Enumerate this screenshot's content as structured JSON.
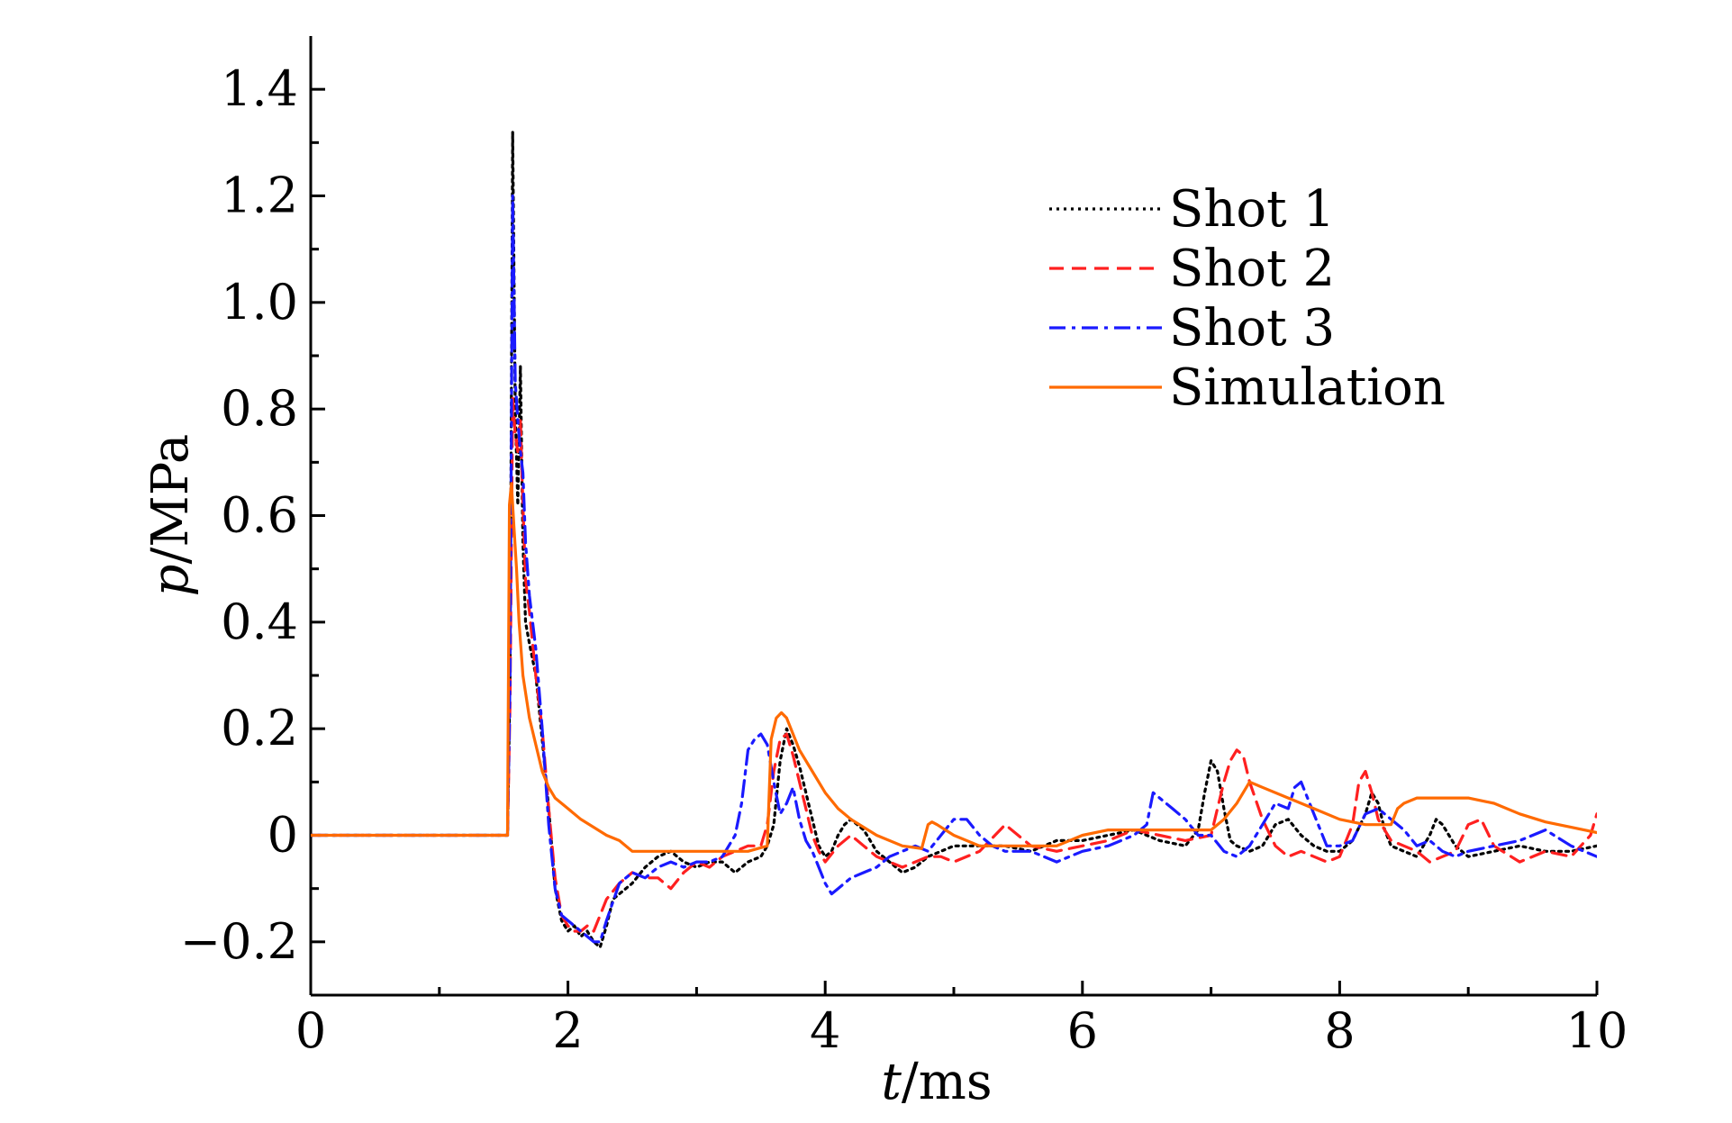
{
  "chart_data": {
    "type": "line",
    "xlabel_var": "t",
    "xlabel_unit": "/ms",
    "ylabel_var": "p",
    "ylabel_unit": "/MPa",
    "xlim": [
      0,
      10
    ],
    "ylim": [
      -0.3,
      1.5
    ],
    "xticks": [
      0,
      2,
      4,
      6,
      8,
      10
    ],
    "xtick_labels": [
      "0",
      "2",
      "4",
      "6",
      "8",
      "10"
    ],
    "yticks": [
      -0.2,
      0,
      0.2,
      0.4,
      0.6,
      0.8,
      1.0,
      1.2,
      1.4
    ],
    "ytick_labels": [
      "−0.2",
      "0",
      "0.2",
      "0.4",
      "0.6",
      "0.8",
      "1.0",
      "1.2",
      "1.4"
    ],
    "legend_position": "top-right",
    "grid": false,
    "series": [
      {
        "name": "Shot 1",
        "color": "#000000",
        "dash": "dotted",
        "x": [
          0,
          1.53,
          1.55,
          1.57,
          1.59,
          1.61,
          1.63,
          1.65,
          1.67,
          1.7,
          1.75,
          1.8,
          1.85,
          1.9,
          1.95,
          2.0,
          2.05,
          2.1,
          2.15,
          2.2,
          2.25,
          2.3,
          2.35,
          2.4,
          2.5,
          2.6,
          2.7,
          2.8,
          2.9,
          3.0,
          3.1,
          3.2,
          3.3,
          3.4,
          3.5,
          3.55,
          3.6,
          3.65,
          3.7,
          3.75,
          3.8,
          3.85,
          3.9,
          3.95,
          4.0,
          4.05,
          4.1,
          4.15,
          4.2,
          4.25,
          4.3,
          4.35,
          4.4,
          4.5,
          4.6,
          4.7,
          4.8,
          4.9,
          5.0,
          5.2,
          5.4,
          5.6,
          5.8,
          6.0,
          6.2,
          6.4,
          6.6,
          6.8,
          6.9,
          6.95,
          7.0,
          7.05,
          7.1,
          7.15,
          7.2,
          7.3,
          7.4,
          7.5,
          7.6,
          7.7,
          7.8,
          7.9,
          8.0,
          8.1,
          8.2,
          8.25,
          8.3,
          8.35,
          8.4,
          8.5,
          8.6,
          8.7,
          8.75,
          8.8,
          8.9,
          9.0,
          9.2,
          9.4,
          9.6,
          9.8,
          10.0
        ],
        "y": [
          0,
          0,
          0.3,
          1.32,
          0.8,
          0.62,
          0.88,
          0.55,
          0.4,
          0.36,
          0.3,
          0.18,
          0.05,
          -0.1,
          -0.16,
          -0.18,
          -0.17,
          -0.19,
          -0.18,
          -0.2,
          -0.21,
          -0.17,
          -0.12,
          -0.11,
          -0.09,
          -0.06,
          -0.04,
          -0.03,
          -0.05,
          -0.06,
          -0.05,
          -0.05,
          -0.07,
          -0.05,
          -0.04,
          -0.02,
          0.02,
          0.14,
          0.2,
          0.17,
          0.13,
          0.08,
          0.03,
          -0.02,
          -0.04,
          -0.03,
          0.0,
          0.02,
          0.03,
          0.02,
          0.01,
          -0.01,
          -0.03,
          -0.05,
          -0.07,
          -0.06,
          -0.04,
          -0.03,
          -0.02,
          -0.02,
          -0.02,
          -0.03,
          -0.01,
          -0.01,
          0.0,
          0.01,
          -0.01,
          -0.02,
          0.01,
          0.08,
          0.14,
          0.12,
          0.05,
          -0.01,
          -0.02,
          -0.03,
          -0.02,
          0.02,
          0.03,
          0.0,
          -0.02,
          -0.03,
          -0.03,
          -0.01,
          0.04,
          0.08,
          0.06,
          0.01,
          -0.02,
          -0.03,
          -0.04,
          0.0,
          0.03,
          0.02,
          -0.02,
          -0.04,
          -0.03,
          -0.02,
          -0.03,
          -0.03,
          -0.02
        ]
      },
      {
        "name": "Shot 2",
        "color": "#ff2020",
        "dash": "dashed",
        "x": [
          0,
          1.53,
          1.55,
          1.57,
          1.59,
          1.61,
          1.63,
          1.65,
          1.67,
          1.7,
          1.75,
          1.8,
          1.85,
          1.9,
          1.95,
          2.0,
          2.05,
          2.1,
          2.15,
          2.2,
          2.25,
          2.3,
          2.4,
          2.5,
          2.6,
          2.7,
          2.8,
          2.9,
          3.0,
          3.1,
          3.2,
          3.3,
          3.4,
          3.5,
          3.55,
          3.6,
          3.65,
          3.7,
          3.75,
          3.8,
          3.85,
          3.9,
          3.95,
          4.0,
          4.1,
          4.2,
          4.3,
          4.4,
          4.5,
          4.6,
          4.7,
          4.8,
          4.9,
          5.0,
          5.2,
          5.4,
          5.6,
          5.8,
          6.0,
          6.2,
          6.4,
          6.6,
          6.8,
          7.0,
          7.05,
          7.1,
          7.15,
          7.2,
          7.25,
          7.3,
          7.4,
          7.5,
          7.6,
          7.7,
          7.8,
          7.9,
          8.0,
          8.1,
          8.15,
          8.2,
          8.25,
          8.3,
          8.4,
          8.5,
          8.6,
          8.7,
          8.8,
          8.9,
          9.0,
          9.1,
          9.2,
          9.4,
          9.6,
          9.8,
          9.95,
          10.0
        ],
        "y": [
          0,
          0,
          0.25,
          0.82,
          0.75,
          0.72,
          0.78,
          0.62,
          0.48,
          0.42,
          0.3,
          0.2,
          0.05,
          -0.08,
          -0.15,
          -0.17,
          -0.18,
          -0.18,
          -0.17,
          -0.18,
          -0.15,
          -0.12,
          -0.09,
          -0.07,
          -0.08,
          -0.08,
          -0.1,
          -0.07,
          -0.05,
          -0.06,
          -0.04,
          -0.03,
          -0.02,
          -0.02,
          0.02,
          0.12,
          0.18,
          0.19,
          0.15,
          0.1,
          0.05,
          0.0,
          -0.03,
          -0.05,
          -0.02,
          0.0,
          -0.02,
          -0.04,
          -0.05,
          -0.06,
          -0.05,
          -0.04,
          -0.04,
          -0.05,
          -0.03,
          0.02,
          -0.02,
          -0.03,
          -0.02,
          -0.01,
          0.01,
          0.0,
          -0.01,
          0.0,
          0.05,
          0.1,
          0.14,
          0.16,
          0.15,
          0.1,
          0.03,
          -0.02,
          -0.04,
          -0.03,
          -0.04,
          -0.05,
          -0.04,
          0.02,
          0.1,
          0.12,
          0.08,
          0.03,
          -0.01,
          -0.02,
          -0.03,
          -0.05,
          -0.04,
          -0.03,
          0.02,
          0.03,
          -0.02,
          -0.05,
          -0.03,
          -0.04,
          0.0,
          0.04
        ]
      },
      {
        "name": "Shot 3",
        "color": "#1a1aff",
        "dash": "dashdot",
        "x": [
          0,
          1.53,
          1.55,
          1.57,
          1.59,
          1.61,
          1.63,
          1.65,
          1.67,
          1.7,
          1.75,
          1.8,
          1.85,
          1.9,
          1.95,
          2.0,
          2.05,
          2.1,
          2.15,
          2.2,
          2.25,
          2.3,
          2.4,
          2.5,
          2.6,
          2.7,
          2.8,
          2.9,
          3.0,
          3.1,
          3.2,
          3.3,
          3.35,
          3.4,
          3.45,
          3.5,
          3.55,
          3.6,
          3.65,
          3.7,
          3.75,
          3.8,
          3.85,
          3.9,
          3.95,
          4.0,
          4.05,
          4.1,
          4.2,
          4.3,
          4.4,
          4.5,
          4.6,
          4.7,
          4.8,
          4.9,
          5.0,
          5.1,
          5.2,
          5.3,
          5.4,
          5.6,
          5.8,
          6.0,
          6.2,
          6.4,
          6.5,
          6.55,
          6.6,
          6.7,
          6.8,
          6.9,
          7.0,
          7.1,
          7.2,
          7.3,
          7.4,
          7.5,
          7.6,
          7.65,
          7.7,
          7.8,
          7.9,
          8.0,
          8.1,
          8.2,
          8.3,
          8.4,
          8.5,
          8.6,
          8.7,
          8.8,
          8.9,
          9.0,
          9.2,
          9.4,
          9.6,
          9.8,
          10.0
        ],
        "y": [
          0,
          0,
          0.3,
          1.2,
          0.85,
          0.78,
          0.72,
          0.68,
          0.55,
          0.45,
          0.35,
          0.2,
          0.02,
          -0.1,
          -0.15,
          -0.16,
          -0.17,
          -0.18,
          -0.19,
          -0.2,
          -0.2,
          -0.16,
          -0.09,
          -0.07,
          -0.08,
          -0.06,
          -0.05,
          -0.06,
          -0.05,
          -0.05,
          -0.04,
          0.0,
          0.06,
          0.16,
          0.18,
          0.19,
          0.17,
          0.1,
          0.04,
          0.06,
          0.09,
          0.03,
          -0.01,
          -0.03,
          -0.06,
          -0.09,
          -0.11,
          -0.1,
          -0.08,
          -0.07,
          -0.06,
          -0.04,
          -0.03,
          -0.02,
          -0.03,
          0.0,
          0.03,
          0.03,
          0.0,
          -0.02,
          -0.03,
          -0.03,
          -0.05,
          -0.03,
          -0.02,
          0.0,
          0.02,
          0.08,
          0.07,
          0.05,
          0.03,
          0.0,
          0.0,
          -0.03,
          -0.04,
          -0.02,
          0.02,
          0.06,
          0.05,
          0.09,
          0.1,
          0.04,
          -0.02,
          -0.02,
          -0.01,
          0.04,
          0.05,
          0.03,
          0.01,
          -0.02,
          -0.01,
          -0.03,
          -0.04,
          -0.03,
          -0.02,
          -0.01,
          0.01,
          -0.02,
          -0.04
        ]
      },
      {
        "name": "Simulation",
        "color": "#ff6a00",
        "dash": "solid",
        "x": [
          0,
          1.53,
          1.545,
          1.56,
          1.58,
          1.6,
          1.62,
          1.65,
          1.7,
          1.75,
          1.8,
          1.85,
          1.9,
          2.0,
          2.1,
          2.2,
          2.3,
          2.4,
          2.5,
          2.6,
          2.8,
          3.0,
          3.2,
          3.4,
          3.55,
          3.58,
          3.62,
          3.66,
          3.7,
          3.75,
          3.8,
          3.9,
          4.0,
          4.1,
          4.2,
          4.4,
          4.6,
          4.75,
          4.8,
          4.83,
          4.87,
          5.0,
          5.2,
          5.4,
          5.6,
          5.8,
          6.0,
          6.2,
          6.4,
          6.6,
          6.8,
          7.0,
          7.1,
          7.2,
          7.3,
          7.4,
          7.6,
          7.8,
          8.0,
          8.2,
          8.4,
          8.45,
          8.5,
          8.6,
          8.8,
          9.0,
          9.2,
          9.4,
          9.6,
          9.8,
          10.0
        ],
        "y": [
          0,
          0,
          0.62,
          0.66,
          0.58,
          0.5,
          0.4,
          0.3,
          0.22,
          0.17,
          0.12,
          0.09,
          0.07,
          0.05,
          0.03,
          0.015,
          0.0,
          -0.01,
          -0.03,
          -0.03,
          -0.03,
          -0.03,
          -0.03,
          -0.03,
          -0.02,
          0.18,
          0.22,
          0.23,
          0.22,
          0.19,
          0.16,
          0.12,
          0.08,
          0.05,
          0.03,
          0.0,
          -0.02,
          -0.025,
          0.02,
          0.025,
          0.02,
          0.0,
          -0.02,
          -0.02,
          -0.02,
          -0.02,
          0.0,
          0.01,
          0.01,
          0.01,
          0.01,
          0.01,
          0.03,
          0.06,
          0.1,
          0.09,
          0.07,
          0.05,
          0.03,
          0.02,
          0.02,
          0.05,
          0.06,
          0.07,
          0.07,
          0.07,
          0.06,
          0.04,
          0.025,
          0.015,
          0.005
        ]
      }
    ]
  }
}
